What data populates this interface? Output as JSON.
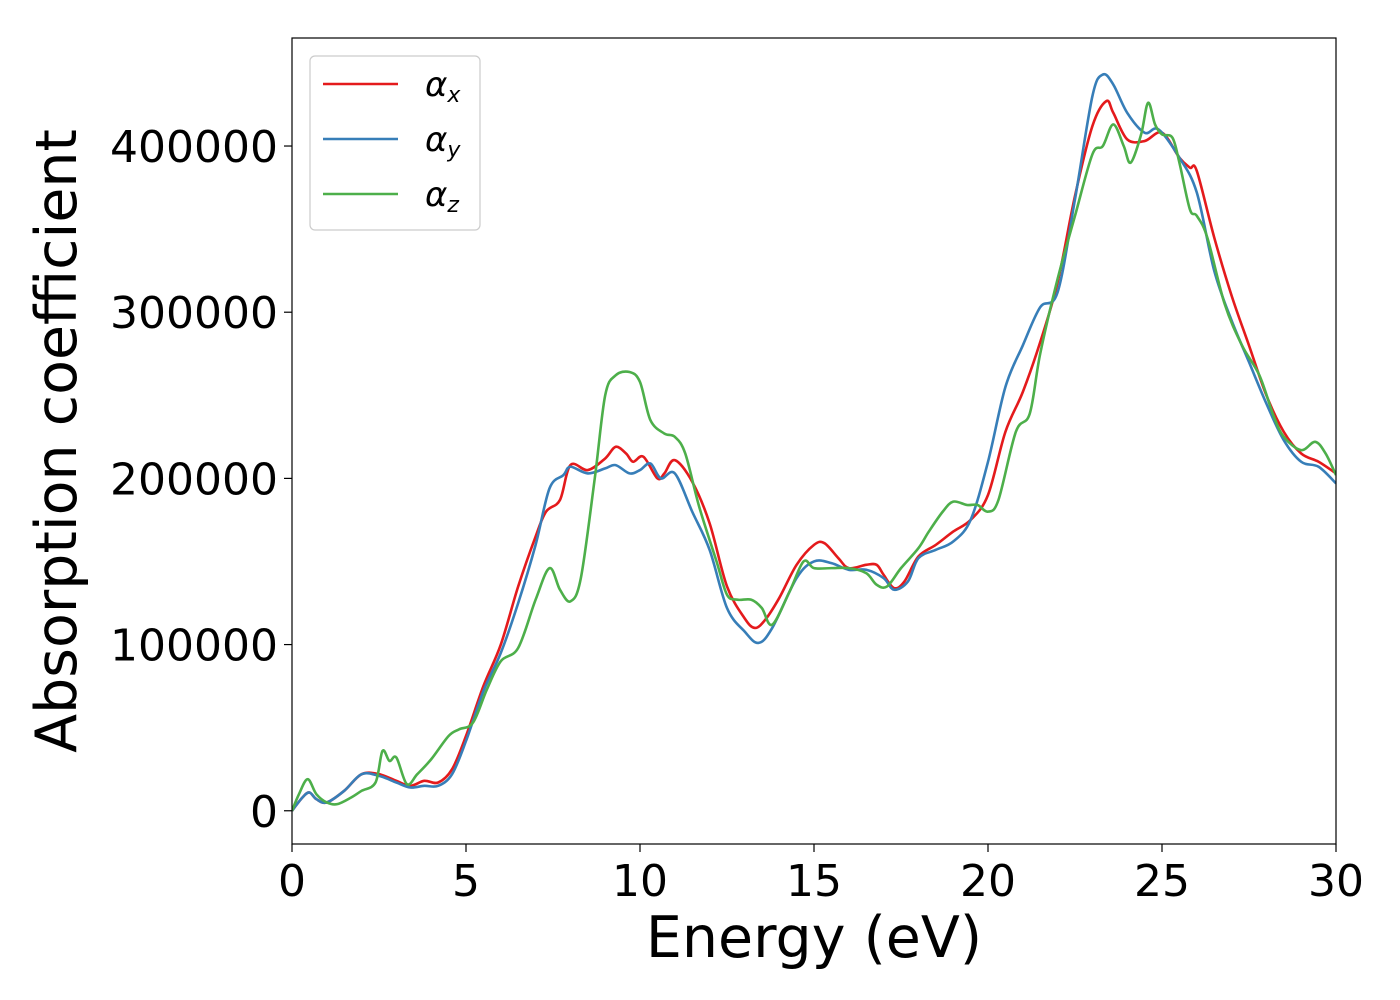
{
  "chart_data": {
    "type": "line",
    "title": "",
    "xlabel": "Energy (eV)",
    "ylabel": "Absorption coefficient",
    "xlim": [
      0,
      30
    ],
    "ylim": [
      -20000,
      465000
    ],
    "xticks": [
      0,
      5,
      10,
      15,
      20,
      25,
      30
    ],
    "xtick_labels": [
      "0",
      "5",
      "10",
      "15",
      "20",
      "25",
      "30"
    ],
    "yticks": [
      0,
      100000,
      200000,
      300000,
      400000
    ],
    "ytick_labels": [
      "0",
      "100000",
      "200000",
      "300000",
      "400000"
    ],
    "grid": false,
    "legend_position": "top-left",
    "series": [
      {
        "name": "αx",
        "symbol": "α",
        "subscript": "x",
        "color": "#e41a1c",
        "points": [
          [
            0,
            0
          ],
          [
            0.3,
            8000
          ],
          [
            0.5,
            11000
          ],
          [
            0.7,
            7000
          ],
          [
            1,
            5000
          ],
          [
            1.5,
            12000
          ],
          [
            2,
            22000
          ],
          [
            2.5,
            22000
          ],
          [
            3,
            18000
          ],
          [
            3.4,
            15000
          ],
          [
            3.8,
            18000
          ],
          [
            4.2,
            17000
          ],
          [
            4.6,
            25000
          ],
          [
            5,
            45000
          ],
          [
            5.5,
            75000
          ],
          [
            6,
            100000
          ],
          [
            6.5,
            135000
          ],
          [
            7,
            165000
          ],
          [
            7.3,
            180000
          ],
          [
            7.7,
            187000
          ],
          [
            8,
            208000
          ],
          [
            8.5,
            205000
          ],
          [
            9,
            212000
          ],
          [
            9.3,
            219000
          ],
          [
            9.6,
            215000
          ],
          [
            9.8,
            210000
          ],
          [
            10.1,
            213000
          ],
          [
            10.5,
            200000
          ],
          [
            10.7,
            203000
          ],
          [
            11,
            211000
          ],
          [
            11.5,
            198000
          ],
          [
            12,
            173000
          ],
          [
            12.5,
            135000
          ],
          [
            13,
            116000
          ],
          [
            13.3,
            110000
          ],
          [
            13.6,
            115000
          ],
          [
            14,
            128000
          ],
          [
            14.5,
            148000
          ],
          [
            15,
            160000
          ],
          [
            15.3,
            161000
          ],
          [
            15.7,
            152000
          ],
          [
            16,
            146000
          ],
          [
            16.5,
            148000
          ],
          [
            16.8,
            148000
          ],
          [
            17,
            142000
          ],
          [
            17.3,
            134000
          ],
          [
            17.6,
            138000
          ],
          [
            18,
            153000
          ],
          [
            18.5,
            160000
          ],
          [
            19,
            168000
          ],
          [
            19.5,
            175000
          ],
          [
            20,
            190000
          ],
          [
            20.5,
            228000
          ],
          [
            21,
            252000
          ],
          [
            21.5,
            282000
          ],
          [
            22,
            318000
          ],
          [
            22.5,
            370000
          ],
          [
            23,
            412000
          ],
          [
            23.4,
            427000
          ],
          [
            23.6,
            420000
          ],
          [
            24,
            404000
          ],
          [
            24.5,
            403000
          ],
          [
            25,
            408000
          ],
          [
            25.5,
            393000
          ],
          [
            25.8,
            387000
          ],
          [
            26,
            385000
          ],
          [
            26.5,
            345000
          ],
          [
            27,
            310000
          ],
          [
            27.5,
            280000
          ],
          [
            28,
            250000
          ],
          [
            28.5,
            228000
          ],
          [
            29,
            215000
          ],
          [
            29.5,
            210000
          ],
          [
            30,
            203000
          ]
        ]
      },
      {
        "name": "αy",
        "symbol": "α",
        "subscript": "y",
        "color": "#377eb8",
        "points": [
          [
            0,
            0
          ],
          [
            0.3,
            8000
          ],
          [
            0.5,
            11000
          ],
          [
            0.7,
            7000
          ],
          [
            1,
            5000
          ],
          [
            1.5,
            12000
          ],
          [
            2,
            22000
          ],
          [
            2.5,
            21000
          ],
          [
            3,
            17000
          ],
          [
            3.4,
            14000
          ],
          [
            3.8,
            15000
          ],
          [
            4.2,
            15000
          ],
          [
            4.6,
            22000
          ],
          [
            5,
            42000
          ],
          [
            5.5,
            72000
          ],
          [
            6,
            95000
          ],
          [
            6.5,
            125000
          ],
          [
            7,
            160000
          ],
          [
            7.4,
            194000
          ],
          [
            7.8,
            202000
          ],
          [
            8,
            207000
          ],
          [
            8.5,
            203000
          ],
          [
            9,
            206000
          ],
          [
            9.3,
            208000
          ],
          [
            9.7,
            203000
          ],
          [
            10,
            205000
          ],
          [
            10.3,
            209000
          ],
          [
            10.6,
            200000
          ],
          [
            11,
            203000
          ],
          [
            11.5,
            180000
          ],
          [
            12,
            157000
          ],
          [
            12.5,
            122000
          ],
          [
            13,
            108000
          ],
          [
            13.4,
            101000
          ],
          [
            13.8,
            110000
          ],
          [
            14.5,
            140000
          ],
          [
            15,
            150000
          ],
          [
            15.5,
            149000
          ],
          [
            16,
            145000
          ],
          [
            16.5,
            145000
          ],
          [
            17,
            140000
          ],
          [
            17.3,
            133000
          ],
          [
            17.7,
            138000
          ],
          [
            18,
            152000
          ],
          [
            18.5,
            157000
          ],
          [
            19,
            162000
          ],
          [
            19.5,
            175000
          ],
          [
            20,
            210000
          ],
          [
            20.5,
            255000
          ],
          [
            21,
            280000
          ],
          [
            21.5,
            303000
          ],
          [
            22,
            312000
          ],
          [
            22.5,
            368000
          ],
          [
            23,
            430000
          ],
          [
            23.3,
            443000
          ],
          [
            23.6,
            437000
          ],
          [
            24,
            420000
          ],
          [
            24.5,
            408000
          ],
          [
            24.9,
            410000
          ],
          [
            25.5,
            393000
          ],
          [
            26,
            372000
          ],
          [
            26.5,
            325000
          ],
          [
            27,
            295000
          ],
          [
            27.5,
            270000
          ],
          [
            28,
            245000
          ],
          [
            28.5,
            223000
          ],
          [
            29,
            210000
          ],
          [
            29.5,
            207000
          ],
          [
            30,
            197000
          ]
        ]
      },
      {
        "name": "αz",
        "symbol": "α",
        "subscript": "z",
        "color": "#4daf4a",
        "points": [
          [
            0,
            0
          ],
          [
            0.2,
            10000
          ],
          [
            0.45,
            19000
          ],
          [
            0.7,
            10000
          ],
          [
            1,
            5000
          ],
          [
            1.3,
            4000
          ],
          [
            1.7,
            8000
          ],
          [
            2,
            12000
          ],
          [
            2.4,
            17000
          ],
          [
            2.6,
            36000
          ],
          [
            2.8,
            30000
          ],
          [
            3,
            32000
          ],
          [
            3.3,
            16000
          ],
          [
            3.6,
            22000
          ],
          [
            4,
            31000
          ],
          [
            4.5,
            45000
          ],
          [
            4.8,
            49000
          ],
          [
            5.2,
            53000
          ],
          [
            5.6,
            73000
          ],
          [
            6,
            90000
          ],
          [
            6.5,
            98000
          ],
          [
            7,
            127000
          ],
          [
            7.4,
            146000
          ],
          [
            7.7,
            133000
          ],
          [
            8,
            126000
          ],
          [
            8.3,
            140000
          ],
          [
            8.7,
            200000
          ],
          [
            9,
            250000
          ],
          [
            9.3,
            262000
          ],
          [
            9.7,
            264000
          ],
          [
            10,
            258000
          ],
          [
            10.3,
            235000
          ],
          [
            10.7,
            227000
          ],
          [
            11,
            225000
          ],
          [
            11.3,
            215000
          ],
          [
            11.7,
            183000
          ],
          [
            12.2,
            150000
          ],
          [
            12.5,
            130000
          ],
          [
            12.8,
            127000
          ],
          [
            13.2,
            127000
          ],
          [
            13.5,
            122000
          ],
          [
            13.8,
            112000
          ],
          [
            14.3,
            132000
          ],
          [
            14.7,
            150000
          ],
          [
            15,
            146000
          ],
          [
            15.5,
            146000
          ],
          [
            16,
            146000
          ],
          [
            16.5,
            143000
          ],
          [
            16.8,
            136000
          ],
          [
            17.1,
            135000
          ],
          [
            17.5,
            146000
          ],
          [
            18,
            158000
          ],
          [
            18.3,
            168000
          ],
          [
            18.7,
            180000
          ],
          [
            19,
            186000
          ],
          [
            19.4,
            184000
          ],
          [
            19.7,
            184000
          ],
          [
            20,
            180000
          ],
          [
            20.3,
            187000
          ],
          [
            20.8,
            228000
          ],
          [
            21.2,
            239000
          ],
          [
            21.5,
            275000
          ],
          [
            22,
            320000
          ],
          [
            22.5,
            358000
          ],
          [
            23,
            395000
          ],
          [
            23.3,
            400000
          ],
          [
            23.6,
            413000
          ],
          [
            23.9,
            400000
          ],
          [
            24.1,
            390000
          ],
          [
            24.4,
            407000
          ],
          [
            24.6,
            426000
          ],
          [
            24.8,
            413000
          ],
          [
            25,
            407000
          ],
          [
            25.3,
            405000
          ],
          [
            25.5,
            390000
          ],
          [
            25.8,
            362000
          ],
          [
            26,
            358000
          ],
          [
            26.3,
            345000
          ],
          [
            26.8,
            305000
          ],
          [
            27.3,
            280000
          ],
          [
            27.8,
            262000
          ],
          [
            28.2,
            238000
          ],
          [
            28.5,
            225000
          ],
          [
            29,
            217000
          ],
          [
            29.4,
            222000
          ],
          [
            29.7,
            215000
          ],
          [
            30,
            202000
          ]
        ]
      }
    ]
  }
}
